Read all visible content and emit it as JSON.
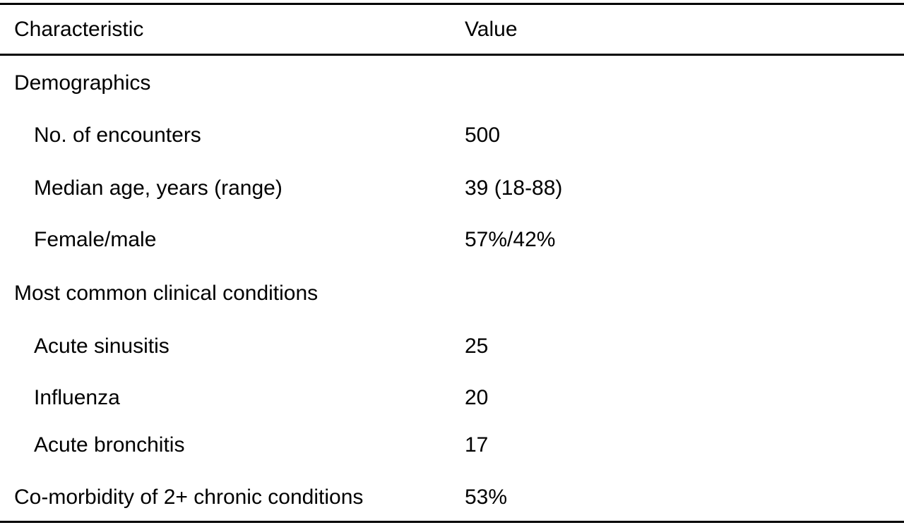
{
  "table": {
    "header": {
      "characteristic": "Characteristic",
      "value": "Value"
    },
    "rows": [
      {
        "label": "Demographics",
        "value": "",
        "indent": false
      },
      {
        "label": "No. of encounters",
        "value": "500",
        "indent": true
      },
      {
        "label": "Median age, years (range)",
        "value": "39 (18-88)",
        "indent": true
      },
      {
        "label": "Female/male",
        "value": "57%/42%",
        "indent": true
      },
      {
        "label": "Most common clinical conditions",
        "value": "",
        "indent": false
      },
      {
        "label": "Acute sinusitis",
        "value": "25",
        "indent": true
      },
      {
        "label": "Influenza",
        "value": "20",
        "indent": true
      },
      {
        "label": "Acute bronchitis",
        "value": "17",
        "indent": true
      },
      {
        "label": "Co-morbidity of 2+ chronic conditions",
        "value": "53%",
        "indent": false
      }
    ]
  }
}
